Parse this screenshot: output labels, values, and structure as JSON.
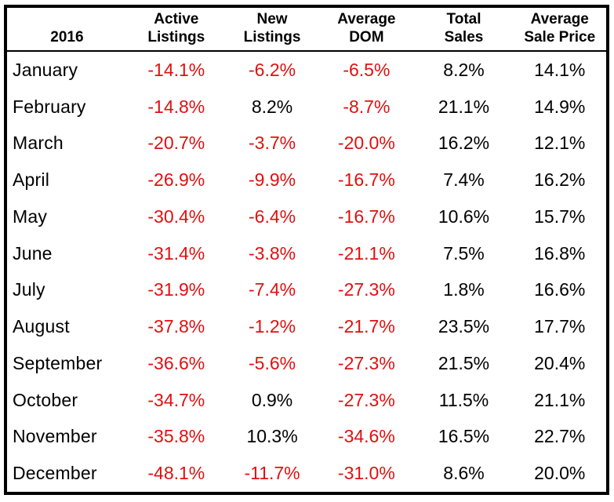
{
  "chart_data": {
    "type": "table",
    "year_label": "2016",
    "columns": [
      "Active Listings",
      "New Listings",
      "Average DOM",
      "Total Sales",
      "Average Sale Price"
    ],
    "column_header_lines": [
      [
        "Active",
        "Listings"
      ],
      [
        "New",
        "Listings"
      ],
      [
        "Average",
        "DOM"
      ],
      [
        "Total",
        "Sales"
      ],
      [
        "Average",
        "Sale Price"
      ]
    ],
    "rows": [
      {
        "month": "January",
        "values": [
          "-14.1%",
          "-6.2%",
          "-6.5%",
          "8.2%",
          "14.1%"
        ]
      },
      {
        "month": "February",
        "values": [
          "-14.8%",
          "8.2%",
          "-8.7%",
          "21.1%",
          "14.9%"
        ]
      },
      {
        "month": "March",
        "values": [
          "-20.7%",
          "-3.7%",
          "-20.0%",
          "16.2%",
          "12.1%"
        ]
      },
      {
        "month": "April",
        "values": [
          "-26.9%",
          "-9.9%",
          "-16.7%",
          "7.4%",
          "16.2%"
        ]
      },
      {
        "month": "May",
        "values": [
          "-30.4%",
          "-6.4%",
          "-16.7%",
          "10.6%",
          "15.7%"
        ]
      },
      {
        "month": "June",
        "values": [
          "-31.4%",
          "-3.8%",
          "-21.1%",
          "7.5%",
          "16.8%"
        ]
      },
      {
        "month": "July",
        "values": [
          "-31.9%",
          "-7.4%",
          "-27.3%",
          "1.8%",
          "16.6%"
        ]
      },
      {
        "month": "August",
        "values": [
          "-37.8%",
          "-1.2%",
          "-21.7%",
          "23.5%",
          "17.7%"
        ]
      },
      {
        "month": "September",
        "values": [
          "-36.6%",
          "-5.6%",
          "-27.3%",
          "21.5%",
          "20.4%"
        ]
      },
      {
        "month": "October",
        "values": [
          "-34.7%",
          "0.9%",
          "-27.3%",
          "11.5%",
          "21.1%"
        ]
      },
      {
        "month": "November",
        "values": [
          "-35.8%",
          "10.3%",
          "-34.6%",
          "16.5%",
          "22.7%"
        ]
      },
      {
        "month": "December",
        "values": [
          "-48.1%",
          "-11.7%",
          "-31.0%",
          "8.6%",
          "20.0%"
        ]
      }
    ]
  },
  "colors": {
    "negative_value": "#e01010",
    "positive_value": "#000000",
    "border": "#000000",
    "background": "#ffffff"
  }
}
